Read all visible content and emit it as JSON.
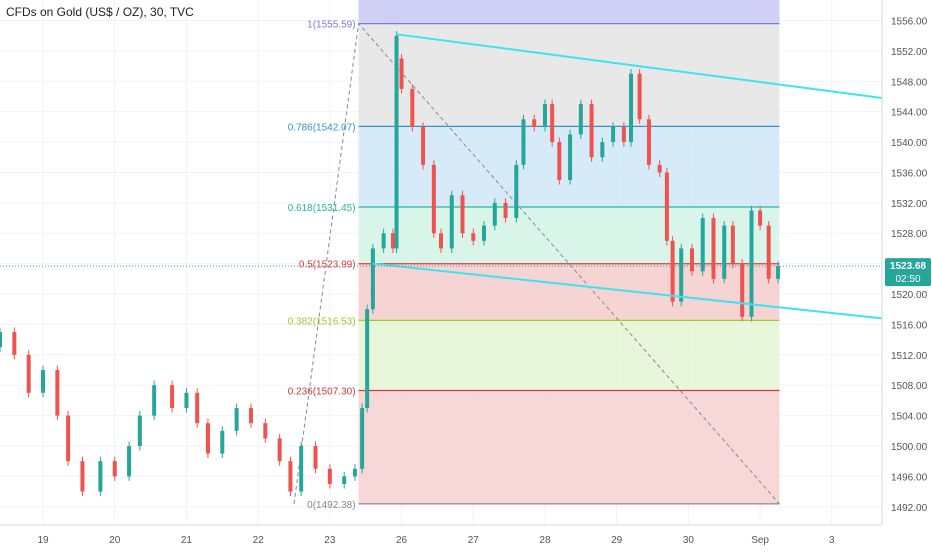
{
  "header": {
    "title": "CFDs on Gold (US$ / OZ), 30, TVC"
  },
  "chart_data": {
    "type": "candlestick",
    "symbol_title": "CFDs on Gold (US$ / OZ), 30, TVC",
    "x_ticks": [
      {
        "label": "19",
        "day": 19
      },
      {
        "label": "20",
        "day": 20
      },
      {
        "label": "21",
        "day": 21
      },
      {
        "label": "22",
        "day": 22
      },
      {
        "label": "23",
        "day": 23
      },
      {
        "label": "26",
        "day": 24
      },
      {
        "label": "27",
        "day": 25
      },
      {
        "label": "28",
        "day": 26
      },
      {
        "label": "29",
        "day": 27
      },
      {
        "label": "30",
        "day": 28
      },
      {
        "label": "Sep",
        "day": 29
      },
      {
        "label": "3",
        "day": 30
      }
    ],
    "x_range": [
      18.4,
      30.7
    ],
    "y_range": [
      1489.6,
      1558.7
    ],
    "y_ticks": [
      1492,
      1496,
      1500,
      1504,
      1508,
      1512,
      1516,
      1520,
      1524,
      1528,
      1532,
      1536,
      1540,
      1544,
      1548,
      1552,
      1556
    ],
    "last_price": "1523.68",
    "countdown": "02:50",
    "colors": {
      "up": "#26a69a",
      "down": "#ef5350",
      "channel": "#3ee3f0",
      "axis_text": "#555555"
    },
    "fibonacci": {
      "x_start": 23.4,
      "x_end": 29.27,
      "levels": [
        {
          "ratio": "1",
          "price": 1555.59,
          "label": "1(1555.59)",
          "color": "#7b7bd6",
          "fill": "#c8c8f4"
        },
        {
          "ratio": "0.786",
          "price": 1542.07,
          "label": "0.786(1542.07)",
          "color": "#3a8fd0",
          "fill": "#e4e4e4"
        },
        {
          "ratio": "0.618",
          "price": 1531.45,
          "label": "0.618(1531.45)",
          "color": "#26b99a",
          "fill": "#cfe6f6"
        },
        {
          "ratio": "0.5",
          "price": 1523.99,
          "label": "0.5(1523.99)",
          "color": "#e23a3a",
          "fill": "#d2f3e6"
        },
        {
          "ratio": "0.382",
          "price": 1516.53,
          "label": "0.382(1516.53)",
          "color": "#9ccc28",
          "fill": "#f6cdcd"
        },
        {
          "ratio": "0.236",
          "price": 1507.3,
          "label": "0.236(1507.30)",
          "color": "#d23a3a",
          "fill": "#e4f4d4"
        },
        {
          "ratio": "0",
          "price": 1492.38,
          "label": "0(1492.38)",
          "color": "#888888",
          "fill": "#f6d0d0"
        }
      ]
    },
    "trend_channel": {
      "upper": {
        "from": [
          23.92,
          1554.2
        ],
        "to": [
          30.7,
          1545.8
        ]
      },
      "lower": {
        "from": [
          23.6,
          1524.0
        ],
        "to": [
          30.7,
          1516.8
        ]
      }
    },
    "dashed_path": [
      [
        22.5,
        1492.38
      ],
      [
        23.4,
        1555.59
      ],
      [
        29.27,
        1492.38
      ]
    ],
    "series": [
      {
        "day": 18.4,
        "open": 1513.0,
        "close": 1515.0
      },
      {
        "day": 18.6,
        "open": 1515.0,
        "close": 1512.0
      },
      {
        "day": 18.8,
        "open": 1512.0,
        "close": 1507.0
      },
      {
        "day": 19.0,
        "open": 1507.0,
        "close": 1510.0
      },
      {
        "day": 19.2,
        "open": 1510.0,
        "close": 1504.0
      },
      {
        "day": 19.35,
        "open": 1504.0,
        "close": 1498.0
      },
      {
        "day": 19.55,
        "open": 1498.0,
        "close": 1494.0
      },
      {
        "day": 19.8,
        "open": 1494.0,
        "close": 1498.0
      },
      {
        "day": 20.0,
        "open": 1498.0,
        "close": 1496.0
      },
      {
        "day": 20.2,
        "open": 1496.0,
        "close": 1500.0
      },
      {
        "day": 20.35,
        "open": 1500.0,
        "close": 1504.0
      },
      {
        "day": 20.55,
        "open": 1504.0,
        "close": 1508.0
      },
      {
        "day": 20.8,
        "open": 1508.0,
        "close": 1505.0
      },
      {
        "day": 21.0,
        "open": 1505.0,
        "close": 1507.0
      },
      {
        "day": 21.15,
        "open": 1507.0,
        "close": 1503.0
      },
      {
        "day": 21.3,
        "open": 1503.0,
        "close": 1499.0
      },
      {
        "day": 21.5,
        "open": 1499.0,
        "close": 1502.0
      },
      {
        "day": 21.7,
        "open": 1502.0,
        "close": 1505.0
      },
      {
        "day": 21.9,
        "open": 1505.0,
        "close": 1503.0
      },
      {
        "day": 22.1,
        "open": 1503.0,
        "close": 1501.0
      },
      {
        "day": 22.3,
        "open": 1501.0,
        "close": 1498.0
      },
      {
        "day": 22.45,
        "open": 1498.0,
        "close": 1494.0
      },
      {
        "day": 22.6,
        "open": 1494.0,
        "close": 1500.0
      },
      {
        "day": 22.8,
        "open": 1500.0,
        "close": 1497.0
      },
      {
        "day": 23.0,
        "open": 1497.0,
        "close": 1495.0
      },
      {
        "day": 23.2,
        "open": 1495.0,
        "close": 1496.0
      },
      {
        "day": 23.35,
        "open": 1496.0,
        "close": 1497.0
      },
      {
        "day": 23.45,
        "open": 1497.0,
        "close": 1505.0
      },
      {
        "day": 23.52,
        "open": 1505.0,
        "close": 1518.0
      },
      {
        "day": 23.6,
        "open": 1518.0,
        "close": 1526.0
      },
      {
        "day": 23.75,
        "open": 1526.0,
        "close": 1528.0
      },
      {
        "day": 23.88,
        "open": 1528.0,
        "close": 1526.0
      },
      {
        "day": 23.93,
        "open": 1526.0,
        "close": 1554.0
      },
      {
        "day": 24.0,
        "open": 1551.0,
        "close": 1547.0
      },
      {
        "day": 24.15,
        "open": 1547.0,
        "close": 1542.0
      },
      {
        "day": 24.3,
        "open": 1542.0,
        "close": 1537.0
      },
      {
        "day": 24.45,
        "open": 1537.0,
        "close": 1528.0
      },
      {
        "day": 24.55,
        "open": 1528.0,
        "close": 1526.0
      },
      {
        "day": 24.7,
        "open": 1526.0,
        "close": 1533.0
      },
      {
        "day": 24.85,
        "open": 1533.0,
        "close": 1528.0
      },
      {
        "day": 25.0,
        "open": 1528.0,
        "close": 1527.0
      },
      {
        "day": 25.15,
        "open": 1527.0,
        "close": 1529.0
      },
      {
        "day": 25.3,
        "open": 1529.0,
        "close": 1532.0
      },
      {
        "day": 25.45,
        "open": 1532.0,
        "close": 1530.0
      },
      {
        "day": 25.6,
        "open": 1530.0,
        "close": 1537.0
      },
      {
        "day": 25.7,
        "open": 1537.0,
        "close": 1543.0
      },
      {
        "day": 25.85,
        "open": 1543.0,
        "close": 1542.0
      },
      {
        "day": 26.0,
        "open": 1542.0,
        "close": 1545.0
      },
      {
        "day": 26.1,
        "open": 1545.0,
        "close": 1540.0
      },
      {
        "day": 26.2,
        "open": 1540.0,
        "close": 1535.0
      },
      {
        "day": 26.35,
        "open": 1535.0,
        "close": 1541.0
      },
      {
        "day": 26.5,
        "open": 1541.0,
        "close": 1545.0
      },
      {
        "day": 26.65,
        "open": 1545.0,
        "close": 1538.0
      },
      {
        "day": 26.8,
        "open": 1538.0,
        "close": 1540.0
      },
      {
        "day": 26.95,
        "open": 1540.0,
        "close": 1542.0
      },
      {
        "day": 27.1,
        "open": 1542.0,
        "close": 1540.0
      },
      {
        "day": 27.2,
        "open": 1540.0,
        "close": 1549.0
      },
      {
        "day": 27.32,
        "open": 1549.0,
        "close": 1543.0
      },
      {
        "day": 27.45,
        "open": 1543.0,
        "close": 1537.0
      },
      {
        "day": 27.6,
        "open": 1537.0,
        "close": 1536.0
      },
      {
        "day": 27.7,
        "open": 1536.0,
        "close": 1527.0
      },
      {
        "day": 27.78,
        "open": 1527.0,
        "close": 1519.0
      },
      {
        "day": 27.9,
        "open": 1519.0,
        "close": 1526.0
      },
      {
        "day": 28.05,
        "open": 1526.0,
        "close": 1523.0
      },
      {
        "day": 28.2,
        "open": 1523.0,
        "close": 1530.0
      },
      {
        "day": 28.35,
        "open": 1530.0,
        "close": 1522.0
      },
      {
        "day": 28.5,
        "open": 1522.0,
        "close": 1529.0
      },
      {
        "day": 28.62,
        "open": 1529.0,
        "close": 1524.0
      },
      {
        "day": 28.75,
        "open": 1524.0,
        "close": 1517.0
      },
      {
        "day": 28.88,
        "open": 1517.0,
        "close": 1531.0
      },
      {
        "day": 29.0,
        "open": 1531.0,
        "close": 1529.0
      },
      {
        "day": 29.12,
        "open": 1529.0,
        "close": 1522.0
      },
      {
        "day": 29.25,
        "open": 1522.0,
        "close": 1523.68
      }
    ]
  }
}
